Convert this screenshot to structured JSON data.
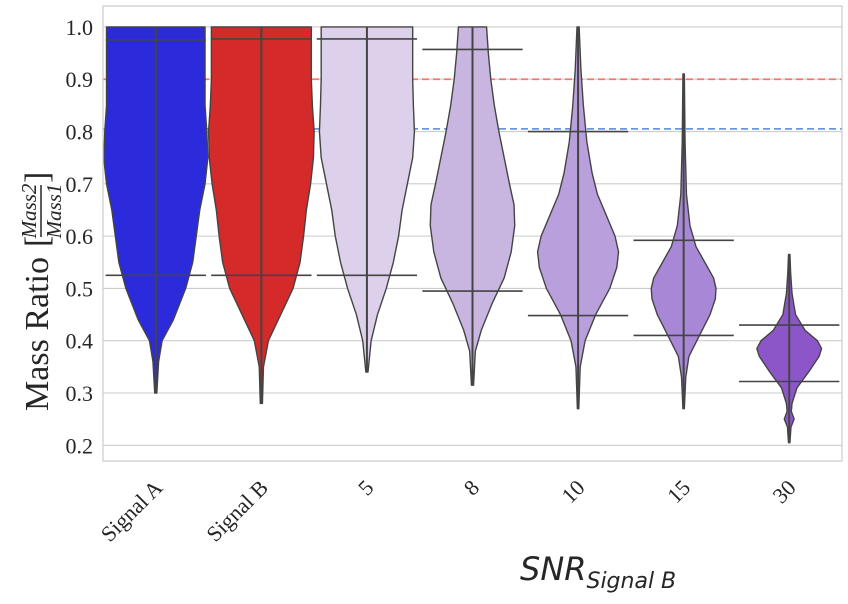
{
  "chart_data": {
    "type": "violin",
    "title": "",
    "xlabel": "SNR",
    "xlabel_subscript": "Signal B",
    "ylabel": "Mass Ratio",
    "ylabel_fraction": {
      "numerator": "Mass2",
      "denominator": "Mass1"
    },
    "ylim": [
      0.17,
      1.04
    ],
    "yticks": [
      "0.2",
      "0.3",
      "0.4",
      "0.5",
      "0.6",
      "0.7",
      "0.8",
      "0.9",
      "1.0"
    ],
    "grid": true,
    "reference_lines": [
      {
        "y": 0.9,
        "color": "#f07a72",
        "style": "dashed"
      },
      {
        "y": 0.805,
        "color": "#6a96e0",
        "style": "dashed"
      }
    ],
    "categories": [
      "Signal A",
      "Signal B",
      "5",
      "8",
      "10",
      "15",
      "30"
    ],
    "violins": [
      {
        "category": "Signal A",
        "color": "#2b2bdc",
        "min": 0.3,
        "max": 1.0,
        "q_low": 0.525,
        "q_high": 0.975,
        "profile": [
          [
            0.3,
            0.003
          ],
          [
            0.36,
            0.008
          ],
          [
            0.4,
            0.018
          ],
          [
            0.44,
            0.05
          ],
          [
            0.5,
            0.085
          ],
          [
            0.55,
            0.105
          ],
          [
            0.6,
            0.115
          ],
          [
            0.65,
            0.125
          ],
          [
            0.7,
            0.14
          ],
          [
            0.75,
            0.148
          ],
          [
            0.8,
            0.145
          ],
          [
            0.85,
            0.14
          ],
          [
            0.9,
            0.14
          ],
          [
            0.95,
            0.14
          ],
          [
            1.0,
            0.14
          ]
        ]
      },
      {
        "category": "Signal B",
        "color": "#d42a2a",
        "min": 0.28,
        "max": 1.0,
        "q_low": 0.525,
        "q_high": 0.977,
        "profile": [
          [
            0.28,
            0.003
          ],
          [
            0.35,
            0.006
          ],
          [
            0.4,
            0.02
          ],
          [
            0.45,
            0.055
          ],
          [
            0.5,
            0.09
          ],
          [
            0.55,
            0.11
          ],
          [
            0.6,
            0.12
          ],
          [
            0.65,
            0.128
          ],
          [
            0.7,
            0.14
          ],
          [
            0.75,
            0.148
          ],
          [
            0.8,
            0.15
          ],
          [
            0.85,
            0.145
          ],
          [
            0.9,
            0.142
          ],
          [
            0.95,
            0.142
          ],
          [
            1.0,
            0.142
          ]
        ]
      },
      {
        "category": "5",
        "color": "#dcd0ea",
        "min": 0.34,
        "max": 1.0,
        "q_low": 0.525,
        "q_high": 0.977,
        "profile": [
          [
            0.34,
            0.003
          ],
          [
            0.4,
            0.012
          ],
          [
            0.45,
            0.03
          ],
          [
            0.5,
            0.055
          ],
          [
            0.55,
            0.075
          ],
          [
            0.6,
            0.09
          ],
          [
            0.65,
            0.1
          ],
          [
            0.7,
            0.115
          ],
          [
            0.75,
            0.13
          ],
          [
            0.8,
            0.135
          ],
          [
            0.85,
            0.132
          ],
          [
            0.9,
            0.13
          ],
          [
            0.95,
            0.13
          ],
          [
            1.0,
            0.13
          ]
        ]
      },
      {
        "category": "8",
        "color": "#c8b6e0",
        "min": 0.315,
        "max": 1.0,
        "q_low": 0.495,
        "q_high": 0.957,
        "profile": [
          [
            0.315,
            0.003
          ],
          [
            0.38,
            0.008
          ],
          [
            0.42,
            0.025
          ],
          [
            0.47,
            0.055
          ],
          [
            0.52,
            0.09
          ],
          [
            0.57,
            0.11
          ],
          [
            0.62,
            0.12
          ],
          [
            0.66,
            0.118
          ],
          [
            0.7,
            0.105
          ],
          [
            0.75,
            0.09
          ],
          [
            0.8,
            0.075
          ],
          [
            0.85,
            0.062
          ],
          [
            0.9,
            0.052
          ],
          [
            0.95,
            0.045
          ],
          [
            1.0,
            0.04
          ]
        ]
      },
      {
        "category": "10",
        "color": "#b9a0dc",
        "min": 0.27,
        "max": 1.0,
        "q_low": 0.448,
        "q_high": 0.8,
        "profile": [
          [
            0.27,
            0.002
          ],
          [
            0.35,
            0.006
          ],
          [
            0.4,
            0.02
          ],
          [
            0.45,
            0.05
          ],
          [
            0.5,
            0.09
          ],
          [
            0.54,
            0.11
          ],
          [
            0.57,
            0.115
          ],
          [
            0.6,
            0.105
          ],
          [
            0.64,
            0.08
          ],
          [
            0.68,
            0.055
          ],
          [
            0.72,
            0.04
          ],
          [
            0.78,
            0.025
          ],
          [
            0.85,
            0.015
          ],
          [
            0.92,
            0.008
          ],
          [
            1.0,
            0.003
          ]
        ]
      },
      {
        "category": "15",
        "color": "#a888d6",
        "min": 0.27,
        "max": 0.91,
        "q_low": 0.41,
        "q_high": 0.592,
        "profile": [
          [
            0.27,
            0.002
          ],
          [
            0.33,
            0.006
          ],
          [
            0.37,
            0.015
          ],
          [
            0.41,
            0.045
          ],
          [
            0.45,
            0.075
          ],
          [
            0.48,
            0.09
          ],
          [
            0.5,
            0.092
          ],
          [
            0.52,
            0.085
          ],
          [
            0.55,
            0.06
          ],
          [
            0.58,
            0.035
          ],
          [
            0.62,
            0.018
          ],
          [
            0.68,
            0.008
          ],
          [
            0.78,
            0.004
          ],
          [
            0.91,
            0.002
          ]
        ]
      },
      {
        "category": "30",
        "color": "#8c56c8",
        "min": 0.205,
        "max": 0.565,
        "q_low": 0.322,
        "q_high": 0.43,
        "profile": [
          [
            0.205,
            0.002
          ],
          [
            0.235,
            0.005
          ],
          [
            0.25,
            0.014
          ],
          [
            0.265,
            0.006
          ],
          [
            0.28,
            0.008
          ],
          [
            0.31,
            0.022
          ],
          [
            0.34,
            0.055
          ],
          [
            0.37,
            0.085
          ],
          [
            0.385,
            0.092
          ],
          [
            0.4,
            0.08
          ],
          [
            0.42,
            0.045
          ],
          [
            0.45,
            0.018
          ],
          [
            0.49,
            0.008
          ],
          [
            0.53,
            0.004
          ],
          [
            0.565,
            0.002
          ]
        ]
      }
    ]
  }
}
